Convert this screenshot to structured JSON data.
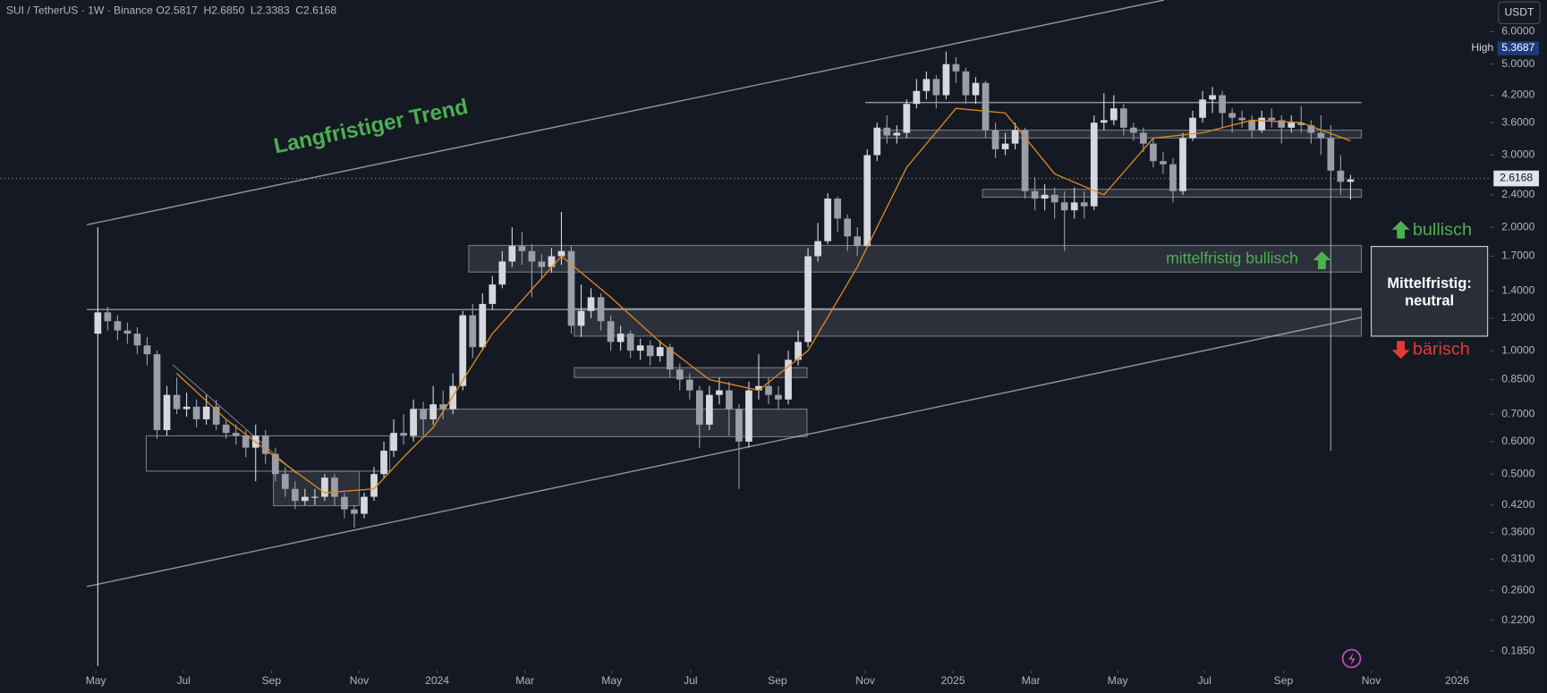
{
  "chart_data": {
    "type": "candlestick",
    "title": "SUI / TetherUS · 1W · Binance",
    "legend_values": [
      "O2.5817",
      "H2.6850",
      "L2.3383",
      "C2.6168"
    ],
    "currency": "USDT",
    "high_label": "High",
    "high_value": "5.3687",
    "last_price": "2.6168",
    "annotations": {
      "trend": "Langfristiger Trend",
      "mid_bullish": "mittelfristig bullisch",
      "bullish": "bullisch",
      "bearish": "bärisch",
      "neutral_box": [
        "Mittelfristig:",
        "neutral"
      ]
    },
    "log_scale": true,
    "up_color": "#d6d8de",
    "down_color": "#9a9ea8",
    "ma_color": "#e08a1e",
    "xlim": [
      -9.9,
      141.1
    ],
    "xticks": [
      {
        "value": -0.2,
        "label": "May"
      },
      {
        "value": 8.7,
        "label": "Jul"
      },
      {
        "value": 17.6,
        "label": "Sep"
      },
      {
        "value": 26.5,
        "label": "Nov"
      },
      {
        "value": 34.4,
        "label": "2024"
      },
      {
        "value": 43.3,
        "label": "Mar"
      },
      {
        "value": 52.1,
        "label": "May"
      },
      {
        "value": 60.1,
        "label": "Jul"
      },
      {
        "value": 68.9,
        "label": "Sep"
      },
      {
        "value": 77.8,
        "label": "Nov"
      },
      {
        "value": 86.7,
        "label": "2025"
      },
      {
        "value": 94.6,
        "label": "Mar"
      },
      {
        "value": 103.4,
        "label": "May"
      },
      {
        "value": 112.2,
        "label": "Jul"
      },
      {
        "value": 120.2,
        "label": "Sep"
      },
      {
        "value": 129.1,
        "label": "Nov"
      },
      {
        "value": 137.8,
        "label": "2026"
      }
    ],
    "ylim": [
      0.166,
      7.17
    ],
    "yticks": [
      {
        "value": 6,
        "label": "6.0000"
      },
      {
        "value": 5,
        "label": "5.0000"
      },
      {
        "value": 4.2,
        "label": "4.2000"
      },
      {
        "value": 3.6,
        "label": "3.6000"
      },
      {
        "value": 3,
        "label": "3.0000"
      },
      {
        "value": 2.4,
        "label": "2.4000"
      },
      {
        "value": 2,
        "label": "2.0000"
      },
      {
        "value": 1.7,
        "label": "1.7000"
      },
      {
        "value": 1.4,
        "label": "1.4000"
      },
      {
        "value": 1.2,
        "label": "1.2000"
      },
      {
        "value": 1,
        "label": "1.0000"
      },
      {
        "value": 0.85,
        "label": "0.8500"
      },
      {
        "value": 0.7,
        "label": "0.7000"
      },
      {
        "value": 0.6,
        "label": "0.6000"
      },
      {
        "value": 0.5,
        "label": "0.5000"
      },
      {
        "value": 0.42,
        "label": "0.4200"
      },
      {
        "value": 0.36,
        "label": "0.3600"
      },
      {
        "value": 0.31,
        "label": "0.3100"
      },
      {
        "value": 0.26,
        "label": "0.2600"
      },
      {
        "value": 0.22,
        "label": "0.2200"
      },
      {
        "value": 0.185,
        "label": "0.1850"
      }
    ],
    "open": [
      1.1,
      1.24,
      1.18,
      1.12,
      1.1,
      1.03,
      0.98,
      0.64,
      0.78,
      0.72,
      0.73,
      0.68,
      0.73,
      0.66,
      0.63,
      0.62,
      0.58,
      0.62,
      0.56,
      0.5,
      0.46,
      0.43,
      0.44,
      0.44,
      0.49,
      0.44,
      0.41,
      0.4,
      0.44,
      0.5,
      0.57,
      0.63,
      0.62,
      0.72,
      0.68,
      0.74,
      0.72,
      0.82,
      1.22,
      1.02,
      1.3,
      1.45,
      1.65,
      1.8,
      1.75,
      1.65,
      1.6,
      1.7,
      1.75,
      1.15,
      1.25,
      1.35,
      1.18,
      1.05,
      1.1,
      1.0,
      1.03,
      0.97,
      1.02,
      0.9,
      0.85,
      0.8,
      0.66,
      0.78,
      0.8,
      0.72,
      0.6,
      0.8,
      0.82,
      0.78,
      0.76,
      0.95,
      1.05,
      1.7,
      1.85,
      2.35,
      2.1,
      1.9,
      1.8,
      3.0,
      3.5,
      3.35,
      3.4,
      4.0,
      4.3,
      4.6,
      4.2,
      5.0,
      4.8,
      4.2,
      4.5,
      3.45,
      3.1,
      3.2,
      3.45,
      2.45,
      2.35,
      2.4,
      2.3,
      2.2,
      2.3,
      2.25,
      3.6,
      3.65,
      3.9,
      3.5,
      3.4,
      3.2,
      2.9,
      2.85,
      2.45,
      3.3,
      3.7,
      4.1,
      4.2,
      3.8,
      3.7,
      3.65,
      3.45,
      3.7,
      3.65,
      3.5,
      3.6,
      3.55,
      3.4,
      3.3,
      2.75,
      2.5817
    ],
    "high": [
      2.0,
      1.28,
      1.22,
      1.17,
      1.14,
      1.08,
      1.0,
      0.82,
      0.86,
      0.79,
      0.76,
      0.78,
      0.76,
      0.68,
      0.66,
      0.64,
      0.66,
      0.64,
      0.58,
      0.52,
      0.48,
      0.46,
      0.46,
      0.5,
      0.5,
      0.45,
      0.42,
      0.45,
      0.52,
      0.6,
      0.68,
      0.7,
      0.76,
      0.75,
      0.82,
      0.8,
      0.88,
      1.25,
      1.3,
      1.38,
      1.52,
      1.75,
      2.0,
      1.95,
      1.82,
      1.72,
      1.78,
      2.18,
      1.8,
      1.45,
      1.42,
      1.38,
      1.22,
      1.15,
      1.12,
      1.07,
      1.06,
      1.06,
      1.04,
      0.93,
      0.88,
      0.82,
      0.82,
      0.86,
      0.84,
      0.74,
      0.84,
      0.98,
      0.86,
      0.82,
      1.0,
      1.12,
      1.78,
      2.05,
      2.42,
      2.38,
      2.15,
      2.0,
      3.1,
      3.6,
      3.75,
      3.55,
      4.1,
      4.6,
      4.8,
      4.7,
      5.3687,
      5.2,
      4.9,
      4.65,
      4.55,
      3.6,
      3.4,
      3.6,
      3.5,
      2.65,
      2.55,
      2.5,
      2.45,
      2.5,
      2.45,
      3.75,
      4.25,
      4.2,
      4.0,
      3.6,
      3.5,
      3.3,
      3.05,
      2.95,
      3.4,
      3.85,
      4.3,
      4.4,
      4.3,
      3.9,
      3.85,
      3.75,
      3.85,
      3.9,
      3.75,
      3.75,
      3.95,
      3.65,
      3.75,
      3.55,
      3.0,
      2.685
    ],
    "low": [
      0.17,
      1.12,
      1.06,
      1.04,
      0.98,
      0.92,
      0.61,
      0.62,
      0.7,
      0.69,
      0.65,
      0.66,
      0.64,
      0.61,
      0.59,
      0.55,
      0.48,
      0.53,
      0.48,
      0.44,
      0.41,
      0.42,
      0.42,
      0.43,
      0.42,
      0.39,
      0.37,
      0.39,
      0.43,
      0.49,
      0.55,
      0.59,
      0.6,
      0.62,
      0.66,
      0.68,
      0.7,
      0.8,
      0.96,
      1.0,
      1.26,
      1.42,
      1.6,
      1.62,
      1.35,
      1.5,
      1.55,
      1.62,
      1.1,
      1.08,
      1.2,
      1.12,
      1.0,
      1.0,
      0.96,
      0.95,
      0.92,
      0.94,
      0.86,
      0.8,
      0.76,
      0.58,
      0.64,
      0.74,
      0.62,
      0.46,
      0.58,
      0.76,
      0.74,
      0.72,
      0.74,
      0.92,
      1.02,
      1.65,
      1.82,
      1.95,
      1.75,
      1.7,
      1.78,
      2.9,
      3.2,
      3.2,
      3.3,
      3.9,
      4.1,
      3.9,
      4.1,
      4.5,
      4.0,
      4.0,
      3.3,
      2.95,
      3.0,
      3.1,
      2.35,
      2.2,
      2.2,
      2.1,
      1.75,
      2.1,
      2.1,
      2.2,
      3.45,
      3.55,
      3.35,
      3.25,
      3.05,
      2.8,
      2.7,
      2.3,
      2.4,
      3.25,
      3.6,
      3.8,
      3.5,
      3.4,
      3.5,
      3.3,
      3.4,
      3.5,
      3.2,
      3.4,
      3.4,
      3.2,
      3.0,
      0.57,
      2.4,
      2.3383
    ],
    "close": [
      1.24,
      1.18,
      1.12,
      1.1,
      1.03,
      0.98,
      0.64,
      0.78,
      0.72,
      0.73,
      0.68,
      0.73,
      0.66,
      0.63,
      0.62,
      0.58,
      0.62,
      0.56,
      0.5,
      0.46,
      0.43,
      0.44,
      0.44,
      0.49,
      0.44,
      0.41,
      0.4,
      0.44,
      0.5,
      0.57,
      0.63,
      0.62,
      0.72,
      0.68,
      0.74,
      0.72,
      0.82,
      1.22,
      1.02,
      1.3,
      1.45,
      1.65,
      1.8,
      1.75,
      1.65,
      1.6,
      1.7,
      1.75,
      1.15,
      1.25,
      1.35,
      1.18,
      1.05,
      1.1,
      1.0,
      1.03,
      0.97,
      1.02,
      0.9,
      0.85,
      0.8,
      0.66,
      0.78,
      0.8,
      0.72,
      0.6,
      0.8,
      0.82,
      0.78,
      0.76,
      0.95,
      1.05,
      1.7,
      1.85,
      2.35,
      2.1,
      1.9,
      1.8,
      3.0,
      3.5,
      3.35,
      3.4,
      4.0,
      4.3,
      4.6,
      4.2,
      5.0,
      4.8,
      4.2,
      4.5,
      3.45,
      3.1,
      3.2,
      3.45,
      2.45,
      2.35,
      2.4,
      2.3,
      2.2,
      2.3,
      2.25,
      3.6,
      3.65,
      3.9,
      3.5,
      3.4,
      3.2,
      2.9,
      2.85,
      2.45,
      3.3,
      3.7,
      4.1,
      4.2,
      3.8,
      3.7,
      3.65,
      3.45,
      3.7,
      3.65,
      3.5,
      3.6,
      3.55,
      3.4,
      3.3,
      2.75,
      2.5817,
      2.6168
    ],
    "ma": {
      "x": [
        8,
        13,
        18,
        23,
        28,
        31,
        34,
        40,
        47,
        52,
        57,
        62,
        67,
        72,
        77,
        82,
        87,
        92,
        97,
        102,
        107,
        112,
        117,
        122,
        127
      ],
      "values": [
        0.88,
        0.68,
        0.55,
        0.45,
        0.46,
        0.55,
        0.65,
        1.1,
        1.7,
        1.35,
        1.05,
        0.85,
        0.8,
        1.0,
        1.6,
        2.8,
        3.9,
        3.8,
        2.7,
        2.4,
        3.3,
        3.4,
        3.65,
        3.6,
        3.25
      ]
    }
  }
}
